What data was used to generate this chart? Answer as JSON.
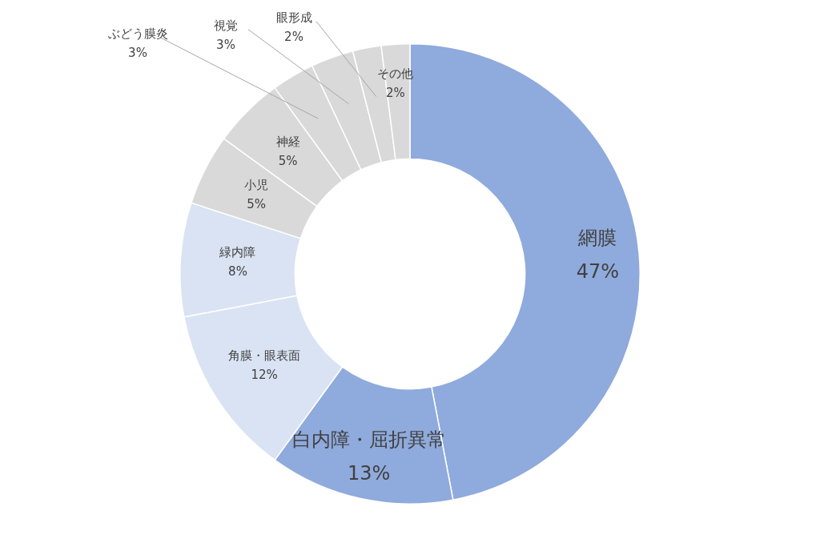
{
  "chart_data": {
    "type": "donut",
    "categories": [
      "網膜",
      "白内障・屈折異常",
      "角膜・眼表面",
      "緑内障",
      "小児",
      "神経",
      "ぶどう膜炎",
      "視覚",
      "眼形成",
      "その他"
    ],
    "values": [
      47,
      13,
      12,
      8,
      5,
      5,
      3,
      3,
      2,
      2
    ],
    "colors": [
      "#8faadc",
      "#8faadc",
      "#dae3f3",
      "#dae3f3",
      "#d9d9d9",
      "#d9d9d9",
      "#d9d9d9",
      "#d9d9d9",
      "#d9d9d9",
      "#d9d9d9"
    ],
    "value_labels": [
      "47%",
      "13%",
      "12%",
      "8%",
      "5%",
      "5%",
      "3%",
      "3%",
      "2%",
      "2%"
    ],
    "legend": false
  }
}
